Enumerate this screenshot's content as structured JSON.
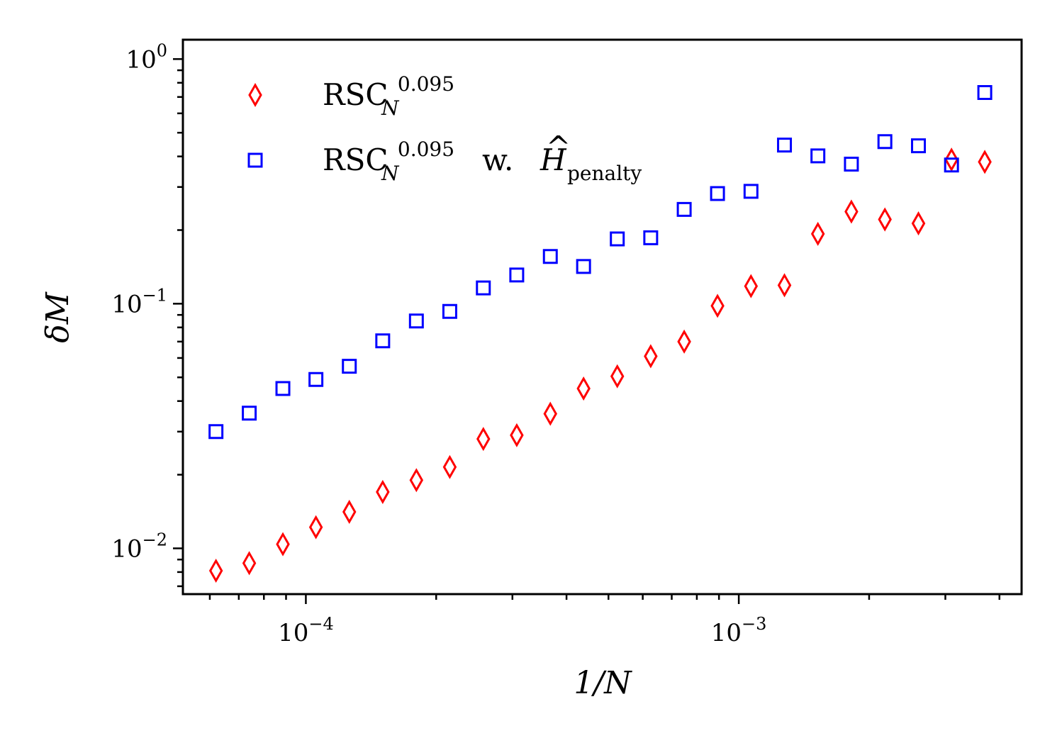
{
  "chart_data": {
    "type": "scatter",
    "title": "",
    "xlabel": "1/N",
    "ylabel": "δM",
    "xscale": "log",
    "yscale": "log",
    "xlim": [
      5.2e-05,
      0.0045
    ],
    "ylim": [
      0.0065,
      1.2
    ],
    "x_ticks": [
      {
        "value": 0.0001,
        "base": "10",
        "exp": "−4"
      },
      {
        "value": 0.001,
        "base": "10",
        "exp": "−3"
      }
    ],
    "y_ticks": [
      {
        "value": 1,
        "base": "10",
        "exp": "0"
      },
      {
        "value": 0.1,
        "base": "10",
        "exp": "−1"
      },
      {
        "value": 0.01,
        "base": "10",
        "exp": "−2"
      }
    ],
    "legend_position": "top-left",
    "x": [
      6.2e-05,
      7.4e-05,
      8.85e-05,
      0.0001055,
      0.000126,
      0.0001505,
      0.00018,
      0.000215,
      0.000257,
      0.000307,
      0.000367,
      0.000438,
      0.000524,
      0.000626,
      0.000748,
      0.000893,
      0.001067,
      0.001275,
      0.001523,
      0.00182,
      0.002175,
      0.0026,
      0.0031,
      0.0037
    ],
    "series": [
      {
        "name": "RSC",
        "label_base": "RSC",
        "label_sup": "0.095",
        "label_sub": "N",
        "label_suffix": "",
        "label_hat": "",
        "label_hat_sub": "",
        "marker": "diamond",
        "color": "#ff0000",
        "values": [
          0.0081,
          0.0087,
          0.0104,
          0.0122,
          0.0141,
          0.017,
          0.019,
          0.0215,
          0.028,
          0.029,
          0.0355,
          0.045,
          0.0505,
          0.061,
          0.07,
          0.098,
          0.118,
          0.119,
          0.193,
          0.238,
          0.221,
          0.213,
          0.388,
          0.38
        ]
      },
      {
        "name": "RSC w. H penalty",
        "label_base": "RSC",
        "label_sup": "0.095",
        "label_sub": "N",
        "label_suffix": "w.",
        "label_hat": "H",
        "label_hat_sub": "penalty",
        "marker": "square",
        "color": "#0000ff",
        "values": [
          0.03,
          0.0357,
          0.045,
          0.049,
          0.0555,
          0.0705,
          0.085,
          0.093,
          0.116,
          0.131,
          0.156,
          0.142,
          0.184,
          0.186,
          0.243,
          0.282,
          0.288,
          0.445,
          0.402,
          0.372,
          0.46,
          0.442,
          0.369,
          0.73
        ]
      }
    ]
  }
}
